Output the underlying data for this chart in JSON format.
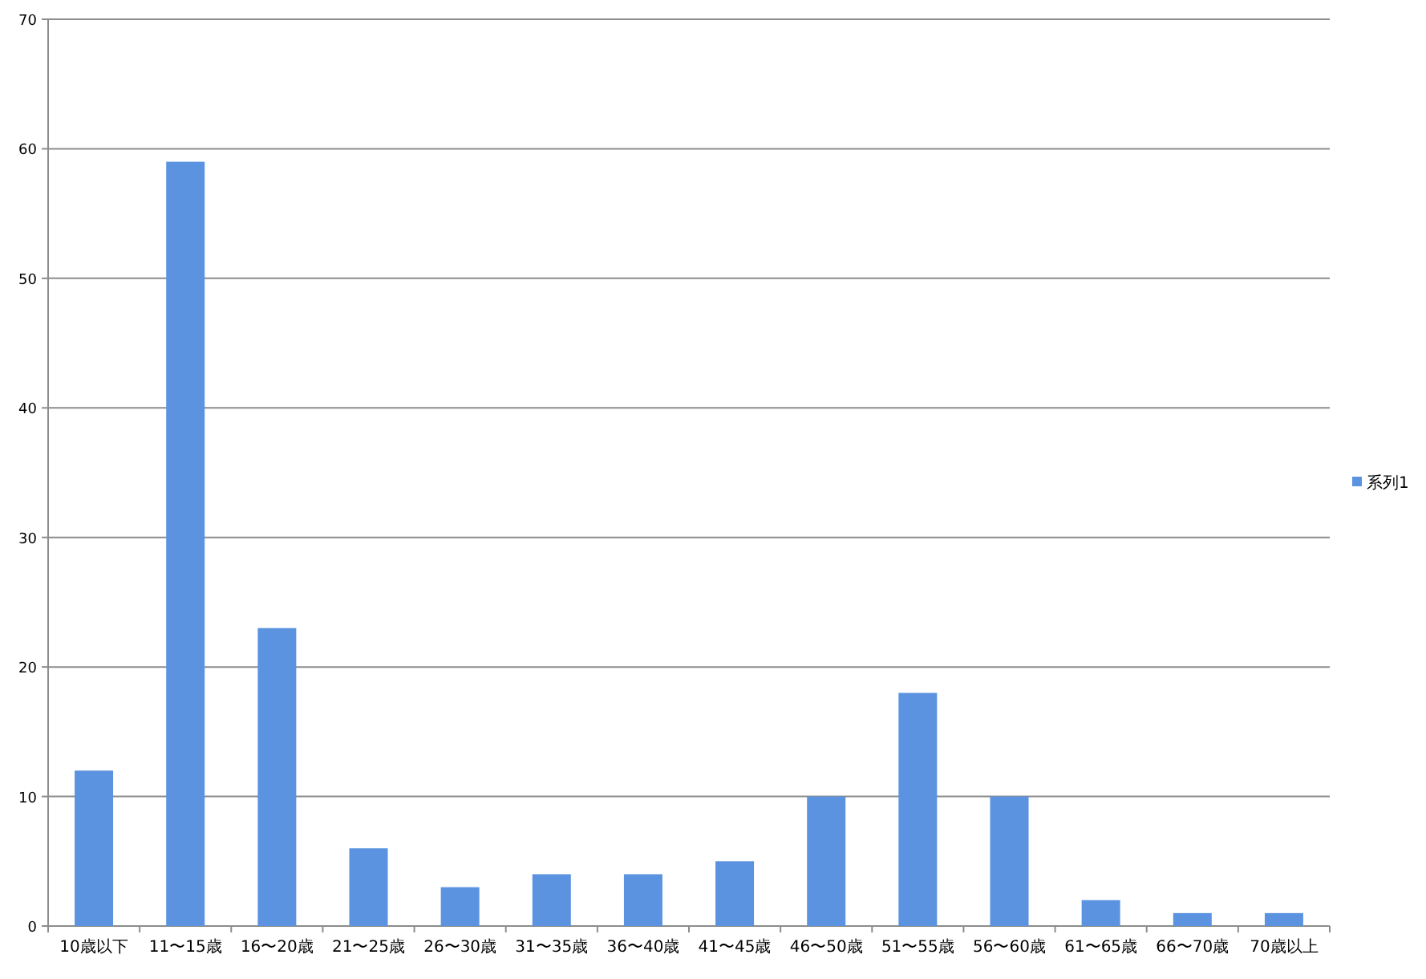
{
  "chart_data": {
    "type": "bar",
    "categories": [
      "10歳以下",
      "11〜15歳",
      "16〜20歳",
      "21〜25歳",
      "26〜30歳",
      "31〜35歳",
      "36〜40歳",
      "41〜45歳",
      "46〜50歳",
      "51〜55歳",
      "56〜60歳",
      "61〜65歳",
      "66〜70歳",
      "70歳以上"
    ],
    "series": [
      {
        "name": "系列1",
        "color": "#5b93e0",
        "values": [
          12,
          59,
          23,
          6,
          3,
          4,
          4,
          5,
          10,
          18,
          10,
          2,
          1,
          1
        ]
      }
    ],
    "ylim": [
      0,
      70
    ],
    "yticks": [
      0,
      10,
      20,
      30,
      40,
      50,
      60,
      70
    ],
    "grid": "y",
    "legend": "right"
  }
}
